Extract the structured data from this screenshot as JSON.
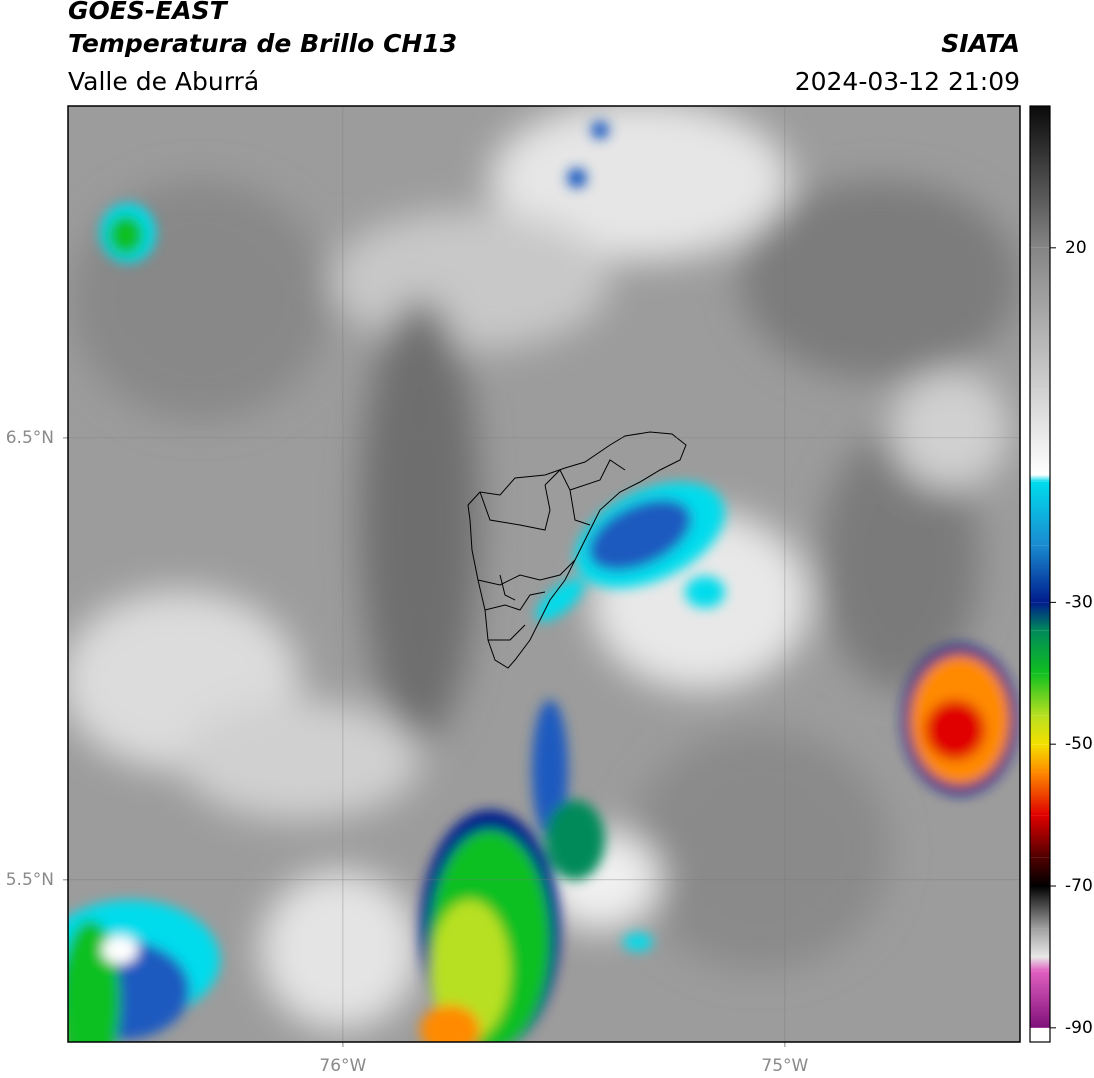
{
  "header": {
    "source": "GOES-EAST",
    "product": "Temperatura de Brillo CH13",
    "org": "SIATA",
    "region": "Valle de Aburrá",
    "datetime": "2024-03-12 21:09"
  },
  "map": {
    "lonlim": [
      -76.622,
      -74.468
    ],
    "latlim": [
      5.133,
      7.251
    ],
    "lonticks": [
      {
        "value": -76,
        "label": "76°W"
      },
      {
        "value": -75,
        "label": "75°W"
      }
    ],
    "latticks": [
      {
        "value": 6.5,
        "label": "6.5°N"
      },
      {
        "value": 5.5,
        "label": "5.5°N"
      }
    ],
    "grid": true
  },
  "colorbar": {
    "lim": [
      -92,
      40
    ],
    "ticks": [
      20,
      -30,
      -50,
      -70,
      -90
    ],
    "stops": [
      {
        "value": 40,
        "color": "#0a0a0a"
      },
      {
        "value": 20,
        "color": "#858585"
      },
      {
        "value": 0,
        "color": "#d0d0d0"
      },
      {
        "value": -12,
        "color": "#ffffff"
      },
      {
        "value": -13,
        "color": "#00dcec"
      },
      {
        "value": -22,
        "color": "#1a8ad0"
      },
      {
        "value": -30,
        "color": "#001c8c"
      },
      {
        "value": -34,
        "color": "#008a5a"
      },
      {
        "value": -40,
        "color": "#10c020"
      },
      {
        "value": -46,
        "color": "#b8e020"
      },
      {
        "value": -50,
        "color": "#f4e000"
      },
      {
        "value": -54,
        "color": "#ff8a00"
      },
      {
        "value": -60,
        "color": "#e00000"
      },
      {
        "value": -66,
        "color": "#500000"
      },
      {
        "value": -70,
        "color": "#000000"
      },
      {
        "value": -76,
        "color": "#a0a0a0"
      },
      {
        "value": -80,
        "color": "#e8e8e8"
      },
      {
        "value": -82,
        "color": "#e060c0"
      },
      {
        "value": -90,
        "color": "#80107a"
      }
    ]
  }
}
